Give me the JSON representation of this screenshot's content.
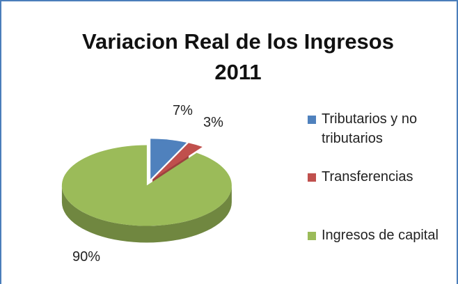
{
  "chart_data": {
    "type": "pie",
    "title": "Variacion Real de los Ingresos 2011",
    "categories": [
      "Tributarios y no tributarios",
      "Transferencias",
      "Ingresos de capital"
    ],
    "values": [
      7,
      3,
      90
    ],
    "value_labels": [
      "7%",
      "3%",
      "90%"
    ],
    "colors": [
      "#4f81bd",
      "#c0504d",
      "#9bbb59"
    ],
    "legend": "right"
  }
}
